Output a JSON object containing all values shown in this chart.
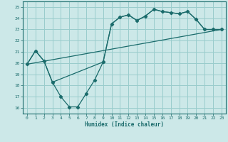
{
  "xlabel": "Humidex (Indice chaleur)",
  "background_color": "#cce8e8",
  "grid_color": "#99cccc",
  "line_color": "#1a6b6b",
  "xlim": [
    -0.5,
    23.5
  ],
  "ylim": [
    15.5,
    25.5
  ],
  "xticks": [
    0,
    1,
    2,
    3,
    4,
    5,
    6,
    7,
    8,
    9,
    10,
    11,
    12,
    13,
    14,
    15,
    16,
    17,
    18,
    19,
    20,
    21,
    22,
    23
  ],
  "yticks": [
    16,
    17,
    18,
    19,
    20,
    21,
    22,
    23,
    24,
    25
  ],
  "line1_x": [
    0,
    1,
    2,
    3,
    4,
    5,
    6,
    7,
    8,
    9,
    10,
    11,
    12,
    13,
    14,
    15,
    16,
    17,
    18,
    19,
    20,
    21,
    22,
    23
  ],
  "line1_y": [
    19.9,
    21.1,
    20.2,
    18.3,
    17.0,
    16.1,
    16.1,
    17.3,
    18.5,
    20.1,
    23.5,
    24.1,
    24.3,
    23.8,
    24.2,
    24.8,
    24.6,
    24.5,
    24.4,
    24.6,
    23.9,
    23.0,
    23.0,
    23.0
  ],
  "line2_x": [
    0,
    1,
    2,
    3,
    9,
    10,
    11,
    12,
    13,
    14,
    15,
    16,
    17,
    18,
    19,
    20,
    21,
    22,
    23
  ],
  "line2_y": [
    19.9,
    21.1,
    20.2,
    18.3,
    20.1,
    23.5,
    24.1,
    24.3,
    23.8,
    24.2,
    24.8,
    24.6,
    24.5,
    24.4,
    24.6,
    23.9,
    23.0,
    23.0,
    23.0
  ],
  "line3_x": [
    0,
    23
  ],
  "line3_y": [
    19.9,
    23.0
  ]
}
